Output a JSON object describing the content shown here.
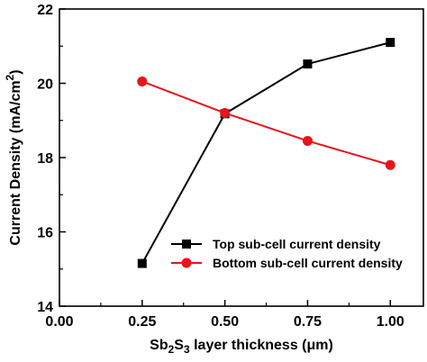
{
  "chart_data": {
    "type": "line",
    "x": [
      0.25,
      0.5,
      0.75,
      1.0
    ],
    "series": [
      {
        "name": "Top sub-cell current density",
        "values": [
          15.15,
          19.18,
          20.52,
          21.1
        ],
        "color": "#000000",
        "marker": "square"
      },
      {
        "name": "Bottom sub-cell current density",
        "values": [
          20.05,
          19.2,
          18.45,
          17.8
        ],
        "color": "#e8141c",
        "marker": "circle"
      }
    ],
    "xlabel": {
      "prefix": "Sb",
      "sub1": "2",
      "mid": "S",
      "sub2": "3",
      "suffix": " layer thickness (μm)"
    },
    "ylabel": {
      "text": "Current Density (mA/cm",
      "sup": "2",
      "close": ")"
    },
    "xlim": [
      0.0,
      1.1
    ],
    "ylim": [
      14,
      22
    ],
    "xticks": [
      "0.00",
      "0.25",
      "0.50",
      "0.75",
      "1.00"
    ],
    "yticks": [
      "14",
      "16",
      "18",
      "20",
      "22"
    ],
    "grid": false,
    "legend_position": "lower-right"
  }
}
